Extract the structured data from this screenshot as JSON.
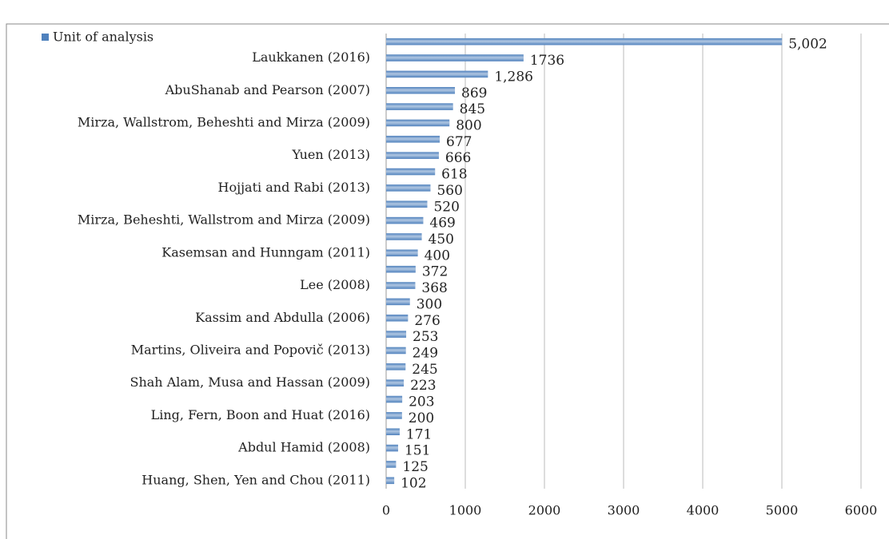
{
  "chart_data": {
    "type": "hbar",
    "categories": [
      null,
      "Laukkanen (2016)",
      null,
      "AbuShanab and Pearson (2007)",
      null,
      "Mirza, Wallstrom, Beheshti and Mirza (2009)",
      null,
      "Yuen (2013)",
      null,
      "Hojjati and Rabi (2013)",
      null,
      "Mirza, Beheshti, Wallstrom and Mirza (2009)",
      null,
      "Kasemsan and Hunngam (2011)",
      null,
      "Lee (2008)",
      null,
      "Kassim and Abdulla (2006)",
      null,
      "Martins, Oliveira and Popovič (2013)",
      null,
      "Shah Alam, Musa and Hassan (2009)",
      null,
      "Ling, Fern, Boon and Huat (2016)",
      null,
      "Abdul Hamid (2008)",
      null,
      "Huang, Shen, Yen and Chou (2011)"
    ],
    "series": [
      {
        "name": "Unit of analysis",
        "color": "#4f81bd",
        "values": [
          5002,
          1736,
          1286,
          869,
          845,
          800,
          677,
          666,
          618,
          560,
          520,
          469,
          450,
          400,
          372,
          368,
          300,
          276,
          253,
          249,
          245,
          223,
          203,
          200,
          171,
          151,
          125,
          102
        ],
        "value_labels": [
          "5,002",
          "1736",
          "1,286",
          "869",
          "845",
          "800",
          "677",
          "666",
          "618",
          "560",
          "520",
          "469",
          "450",
          "400",
          "372",
          "368",
          "300",
          "276",
          "253",
          "249",
          "245",
          "223",
          "203",
          "200",
          "171",
          "151",
          "125",
          "102"
        ]
      }
    ],
    "xlim": [
      0,
      6000
    ],
    "xticks": [
      0,
      1000,
      2000,
      3000,
      4000,
      5000,
      6000
    ],
    "grid": true,
    "legend": "top-left"
  }
}
